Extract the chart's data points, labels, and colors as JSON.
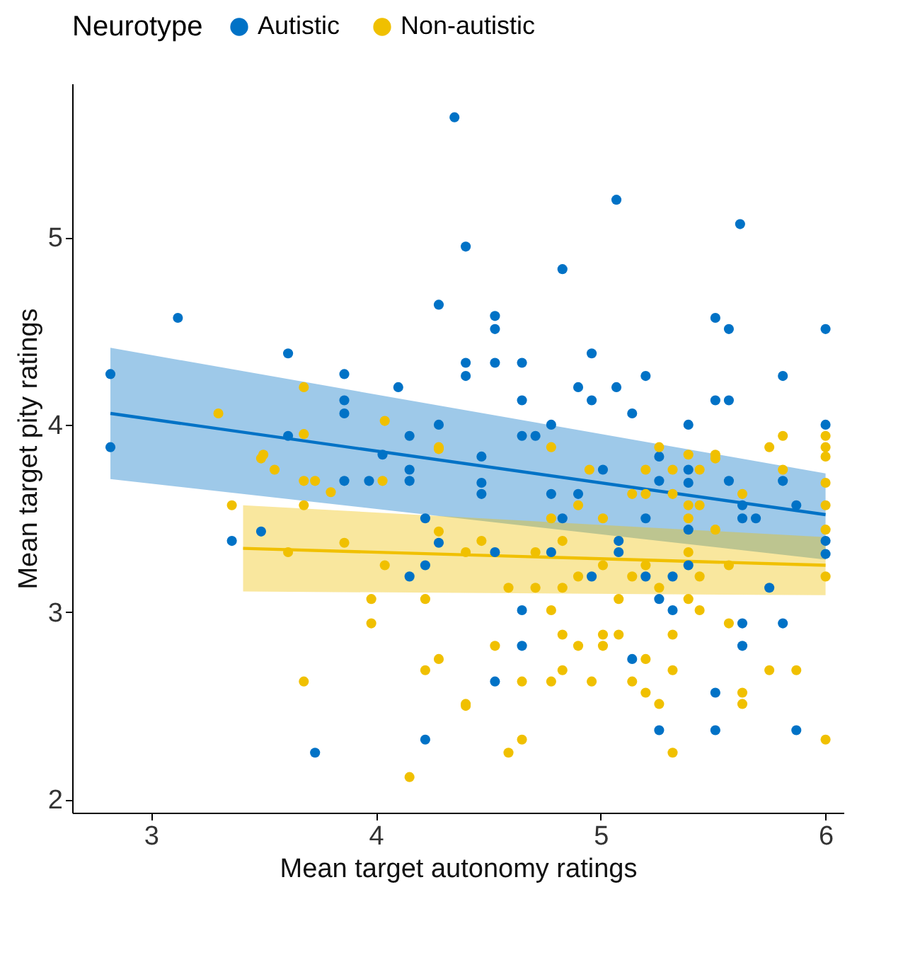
{
  "chart_data": {
    "type": "scatter",
    "xlabel": "Mean target autonomy ratings",
    "ylabel": "Mean target pity ratings",
    "legend_title": "Neurotype",
    "legend": "top",
    "marker": "circle",
    "grid": false,
    "xlim": [
      2.65,
      6.08
    ],
    "xticks": [
      3,
      4,
      5,
      6
    ],
    "ylim": [
      1.93,
      5.82
    ],
    "yticks": [
      2,
      3,
      4,
      5
    ],
    "series": [
      {
        "name": "Autistic",
        "color": "#0072c6",
        "x": [
          4.35,
          4.4,
          4.28,
          3.12,
          3.61,
          3.86,
          2.82,
          4.1,
          4.4,
          3.86,
          3.86,
          4.28,
          4.15,
          3.61,
          2.82,
          5.07,
          5.62,
          4.83,
          4.53,
          4.53,
          5.51,
          5.57,
          6.0,
          4.4,
          4.53,
          4.65,
          4.96,
          5.2,
          5.81,
          4.9,
          5.07,
          4.65,
          4.96,
          5.51,
          5.57,
          5.14,
          4.78,
          5.39,
          6.0,
          4.65,
          4.71,
          4.47,
          4.47,
          4.47,
          4.78,
          4.9,
          5.01,
          5.26,
          5.26,
          5.39,
          5.39,
          5.57,
          5.81,
          5.87,
          5.63,
          5.63,
          5.69,
          5.2,
          4.83,
          5.39,
          5.08,
          6.0,
          6.0,
          4.96,
          5.2,
          5.26,
          5.32,
          4.65,
          5.63,
          5.81,
          4.65,
          5.63,
          5.14,
          4.53,
          5.51,
          5.26,
          5.51,
          5.87,
          5.75,
          4.03,
          4.15,
          4.15,
          3.86,
          3.97,
          4.22,
          4.15,
          3.73,
          4.22,
          3.36,
          3.49,
          4.28,
          4.22,
          4.53,
          4.78,
          5.08,
          5.32,
          5.39
        ],
        "values": [
          5.64,
          4.95,
          4.64,
          4.57,
          4.38,
          4.27,
          4.27,
          4.2,
          4.33,
          4.13,
          4.06,
          4.0,
          3.94,
          3.94,
          3.88,
          5.2,
          5.07,
          4.83,
          4.58,
          4.51,
          4.57,
          4.51,
          4.51,
          4.26,
          4.33,
          4.33,
          4.38,
          4.26,
          4.26,
          4.2,
          4.2,
          4.13,
          4.13,
          4.13,
          4.13,
          4.06,
          4.0,
          4.0,
          4.0,
          3.94,
          3.94,
          3.83,
          3.69,
          3.63,
          3.63,
          3.63,
          3.76,
          3.83,
          3.7,
          3.76,
          3.69,
          3.7,
          3.7,
          3.57,
          3.57,
          3.5,
          3.5,
          3.5,
          3.5,
          3.44,
          3.38,
          3.38,
          3.31,
          3.19,
          3.19,
          3.07,
          3.01,
          3.01,
          2.94,
          2.94,
          2.82,
          2.82,
          2.75,
          2.63,
          2.57,
          2.37,
          2.37,
          2.37,
          3.13,
          3.84,
          3.76,
          3.7,
          3.7,
          3.7,
          3.5,
          3.19,
          2.25,
          2.32,
          3.38,
          3.43,
          3.37,
          3.25,
          3.32,
          3.32,
          3.32,
          3.19,
          3.25
        ]
      },
      {
        "name": "Non-autistic",
        "color": "#f0c000",
        "x": [
          3.68,
          4.04,
          3.3,
          3.68,
          3.5,
          4.28,
          3.49,
          3.55,
          3.68,
          3.73,
          3.8,
          4.03,
          4.28,
          3.36,
          3.68,
          3.61,
          3.86,
          4.04,
          4.28,
          3.98,
          3.98,
          4.22,
          4.28,
          4.22,
          3.68,
          4.4,
          4.15,
          4.4,
          4.47,
          4.71,
          4.83,
          5.01,
          4.78,
          4.9,
          5.01,
          5.14,
          5.2,
          5.44,
          5.39,
          5.57,
          6.0,
          4.59,
          4.71,
          4.83,
          5.08,
          5.26,
          5.39,
          5.44,
          4.78,
          5.57,
          4.83,
          4.9,
          5.01,
          5.08,
          5.01,
          5.32,
          4.53,
          5.2,
          5.32,
          5.75,
          5.87,
          4.65,
          4.78,
          4.83,
          4.96,
          5.14,
          5.2,
          5.26,
          5.63,
          5.63,
          4.4,
          4.65,
          4.59,
          5.32,
          6.0,
          4.78,
          5.26,
          5.39,
          5.51,
          5.75,
          5.81,
          6.0,
          6.0,
          5.51,
          5.81,
          6.0,
          6.0,
          6.0,
          6.0,
          4.95,
          5.2,
          5.32,
          5.44,
          5.14,
          5.2,
          5.32,
          5.39,
          5.44,
          5.39,
          5.63,
          5.51,
          4.9
        ],
        "values": [
          4.2,
          4.02,
          4.06,
          3.95,
          3.84,
          3.88,
          3.82,
          3.76,
          3.7,
          3.7,
          3.64,
          3.7,
          3.87,
          3.57,
          3.57,
          3.32,
          3.37,
          3.25,
          3.43,
          3.07,
          2.94,
          3.07,
          2.75,
          2.69,
          2.63,
          2.5,
          2.12,
          3.32,
          3.38,
          3.32,
          3.38,
          3.5,
          3.5,
          3.19,
          3.25,
          3.19,
          3.25,
          3.19,
          3.32,
          3.25,
          3.19,
          3.13,
          3.13,
          3.13,
          3.07,
          3.13,
          3.07,
          3.01,
          3.01,
          2.94,
          2.88,
          2.82,
          2.88,
          2.88,
          2.82,
          2.88,
          2.82,
          2.75,
          2.69,
          2.69,
          2.69,
          2.63,
          2.63,
          2.69,
          2.63,
          2.63,
          2.57,
          2.51,
          2.57,
          2.51,
          2.51,
          2.32,
          2.25,
          2.25,
          2.32,
          3.88,
          3.88,
          3.84,
          3.84,
          3.88,
          3.94,
          3.94,
          3.88,
          3.82,
          3.76,
          3.83,
          3.69,
          3.57,
          3.44,
          3.76,
          3.76,
          3.76,
          3.76,
          3.63,
          3.63,
          3.63,
          3.57,
          3.57,
          3.5,
          3.63,
          3.44,
          3.57
        ]
      },
      {
        "type": "line",
        "marker": "none",
        "color": "#0072c6",
        "x": [
          2.82,
          6.0
        ],
        "values": [
          4.06,
          3.52
        ],
        "lower": [
          3.71,
          3.28
        ],
        "upper": [
          4.41,
          3.74
        ]
      },
      {
        "type": "line",
        "marker": "none",
        "color": "#f0c000",
        "x": [
          3.41,
          6.0
        ],
        "values": [
          3.34,
          3.25
        ],
        "lower": [
          3.11,
          3.09
        ],
        "upper": [
          3.57,
          3.4
        ]
      }
    ]
  }
}
